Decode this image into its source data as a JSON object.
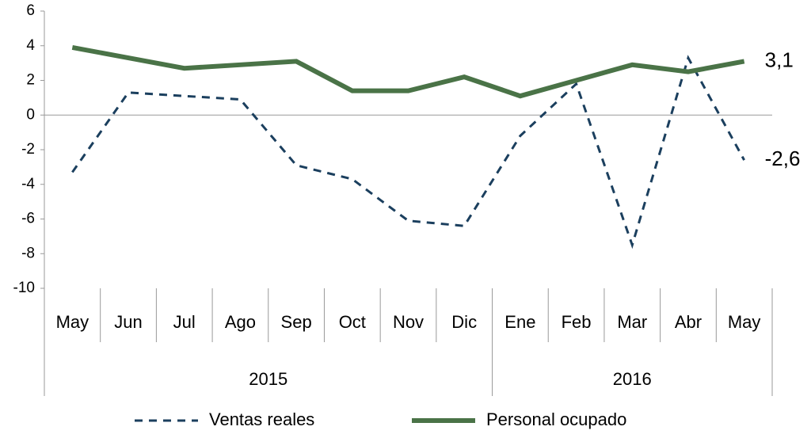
{
  "chart_data": {
    "type": "line",
    "categories": [
      "May",
      "Jun",
      "Jul",
      "Ago",
      "Sep",
      "Oct",
      "Nov",
      "Dic",
      "Ene",
      "Feb",
      "Mar",
      "Abr",
      "May"
    ],
    "x_groups": [
      {
        "label": "2015",
        "from": 0,
        "to": 7
      },
      {
        "label": "2016",
        "from": 8,
        "to": 12
      }
    ],
    "series": [
      {
        "name": "Ventas reales",
        "color": "#1b3f5e",
        "dash": true,
        "values": [
          -3.3,
          1.3,
          1.1,
          0.9,
          -2.9,
          -3.7,
          -6.1,
          -6.4,
          -1.2,
          1.8,
          -7.5,
          3.3,
          -2.6
        ],
        "value_labels": [
          null,
          null,
          null,
          null,
          null,
          null,
          null,
          null,
          null,
          null,
          null,
          null,
          "-2,6"
        ]
      },
      {
        "name": "Personal ocupado",
        "color": "#4a7347",
        "dash": false,
        "values": [
          3.9,
          3.3,
          2.7,
          2.9,
          3.1,
          1.4,
          1.4,
          2.2,
          1.1,
          2.0,
          2.9,
          2.5,
          3.1
        ],
        "value_labels": [
          null,
          null,
          null,
          null,
          null,
          null,
          null,
          null,
          null,
          null,
          null,
          null,
          "3,1"
        ]
      }
    ],
    "ylim": [
      -10,
      6
    ],
    "yticks": [
      -10,
      -8,
      -6,
      -4,
      -2,
      0,
      2,
      4,
      6
    ]
  }
}
